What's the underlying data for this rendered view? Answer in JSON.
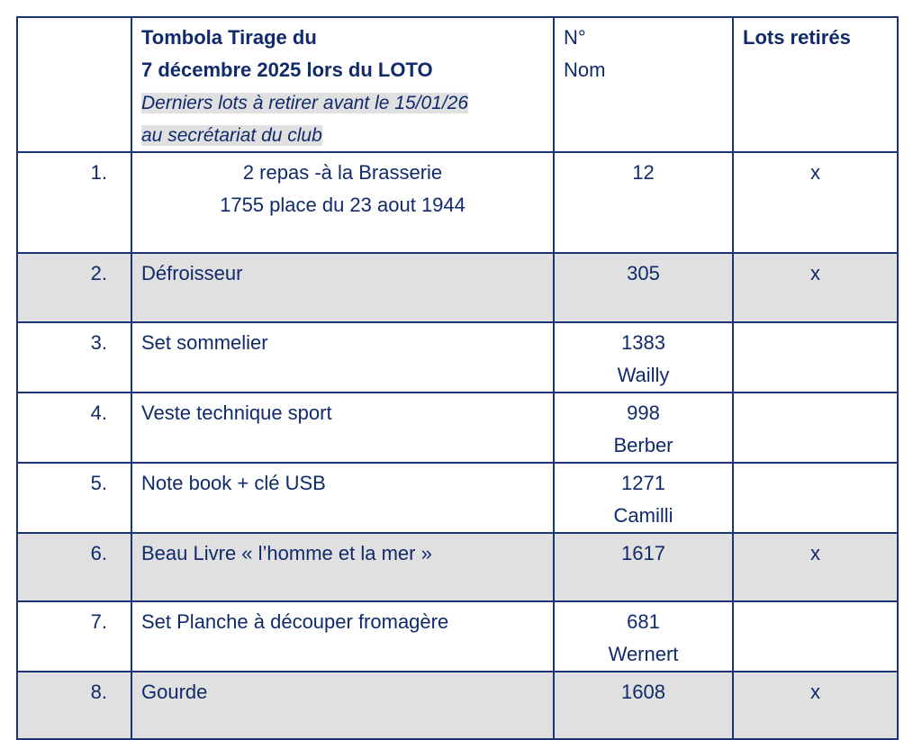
{
  "header": {
    "title_line1": "Tombola Tirage du",
    "title_line2": "7 décembre 2025 lors du LOTO",
    "note_line1": "Derniers lots à retirer avant le 15/01/26",
    "note_line2": "au secrétariat du club",
    "col_number_line1": "N°",
    "col_number_line2": "Nom",
    "col_retired": "Lots retirés"
  },
  "rows": [
    {
      "index": "1.",
      "lot_line1": "2 repas -à la Brasserie",
      "lot_line2": "1755 place du 23 aout 1944",
      "number": "12",
      "name": "",
      "retired": "x",
      "shaded": false
    },
    {
      "index": "2.",
      "lot_line1": "Défroisseur",
      "lot_line2": "",
      "number": "305",
      "name": "",
      "retired": "x",
      "shaded": true
    },
    {
      "index": "3.",
      "lot_line1": "Set sommelier",
      "lot_line2": "",
      "number": "1383",
      "name": "Wailly",
      "retired": "",
      "shaded": false
    },
    {
      "index": "4.",
      "lot_line1": "Veste technique sport",
      "lot_line2": "",
      "number": "998",
      "name": "Berber",
      "retired": "",
      "shaded": false
    },
    {
      "index": "5.",
      "lot_line1": "Note book + clé USB",
      "lot_line2": "",
      "number": "1271",
      "name": "Camilli",
      "retired": "",
      "shaded": false
    },
    {
      "index": "6.",
      "lot_line1": "Beau Livre « l’homme et la mer »",
      "lot_line2": "",
      "number": "1617",
      "name": "",
      "retired": "x",
      "shaded": true
    },
    {
      "index": "7.",
      "lot_line1": "Set Planche à découper fromagère",
      "lot_line2": "",
      "number": "681",
      "name": "Wernert",
      "retired": "",
      "shaded": false
    },
    {
      "index": "8.",
      "lot_line1": "Gourde",
      "lot_line2": "",
      "number": "1608",
      "name": "",
      "retired": "x",
      "shaded": true
    }
  ],
  "colors": {
    "text": "#102a6b",
    "border": "#1d3575",
    "shade": "#e0e0e0"
  }
}
